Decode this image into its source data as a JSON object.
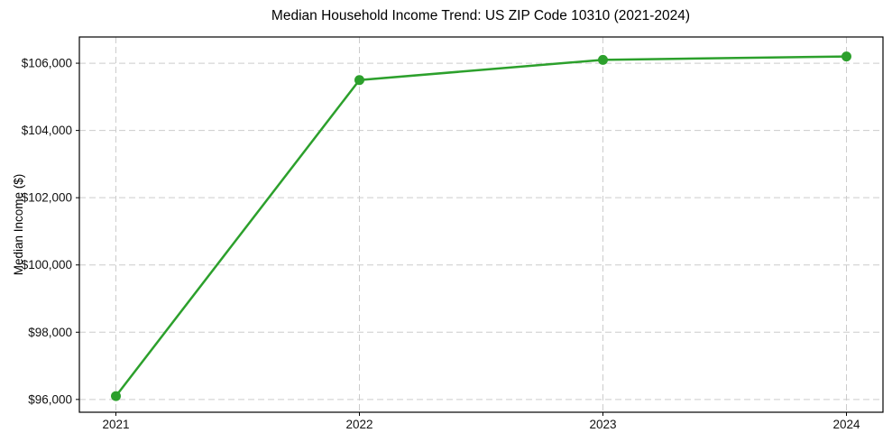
{
  "figure": {
    "title": "Median Household Income Trend: US ZIP Code 10310 (2021-2024)",
    "ylabel": "Median Income ($)"
  },
  "chart_data": {
    "type": "line",
    "title": "Median Household Income Trend: US ZIP Code 10310 (2021-2024)",
    "xlabel": "",
    "ylabel": "Median Income ($)",
    "categories": [
      "2021",
      "2022",
      "2023",
      "2024"
    ],
    "x": [
      2021,
      2022,
      2023,
      2024
    ],
    "values": [
      96100,
      105500,
      106100,
      106200
    ],
    "y_ticks": [
      {
        "value": 96000,
        "label": "$96,000"
      },
      {
        "value": 98000,
        "label": "$98,000"
      },
      {
        "value": 100000,
        "label": "$100,000"
      },
      {
        "value": 102000,
        "label": "$102,000"
      },
      {
        "value": 104000,
        "label": "$104,000"
      },
      {
        "value": 106000,
        "label": "$106,000"
      }
    ],
    "xlim": [
      2020.85,
      2024.15
    ],
    "ylim": [
      95620,
      106780
    ],
    "grid": true,
    "grid_style": "dashed",
    "legend": "none",
    "marker": "circle",
    "line_width": 2.5,
    "marker_radius": 5.5,
    "colors": {
      "line": "#2ca02c",
      "marker": "#2ca02c",
      "grid": "#cccccc",
      "axis": "#000000",
      "text": "#111111",
      "background": "#ffffff"
    }
  }
}
